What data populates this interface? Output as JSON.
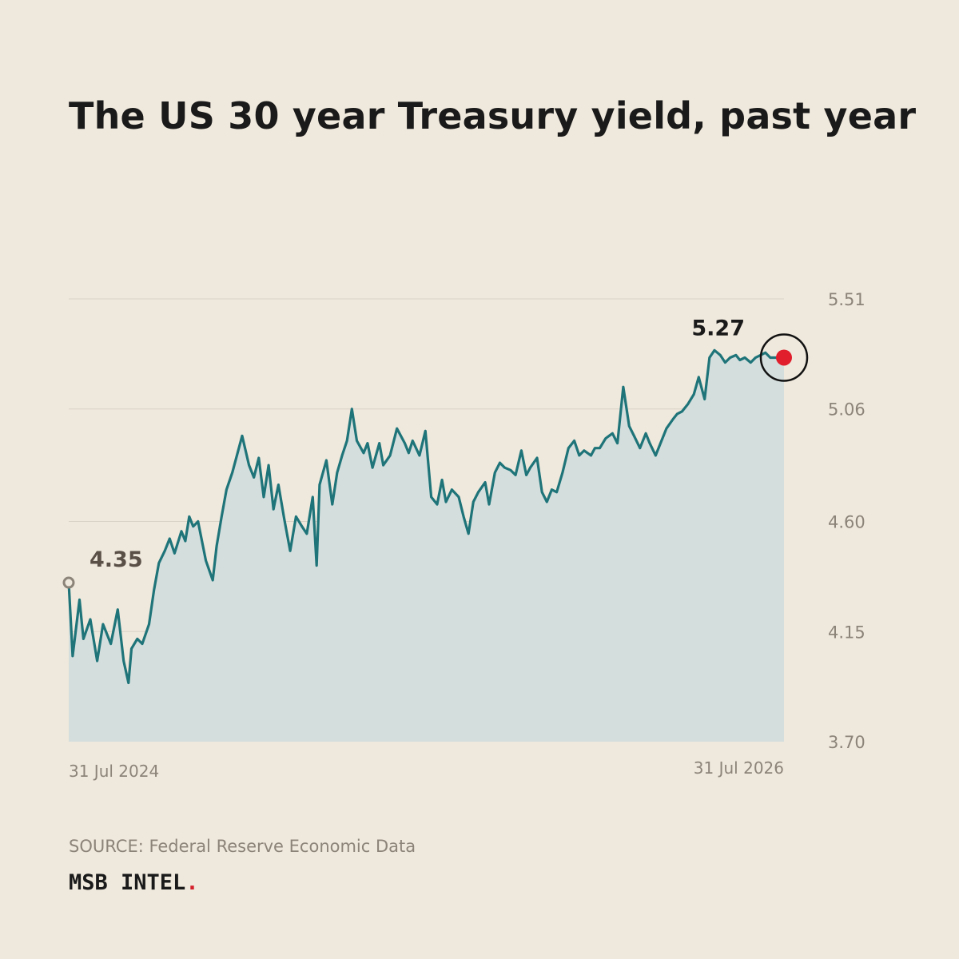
{
  "title": "The US 30 year Treasury yield, past year",
  "source": "SOURCE: Federal Reserve Economic Data",
  "brand": {
    "name": "MSB INTEL",
    "dot": "."
  },
  "colors": {
    "background": "#EFE8DC",
    "line": "#1E7479",
    "area": "#D4DEDD",
    "grid": "#D9D2C6",
    "axis_text": "#8C8479",
    "start_marker": "#8C8479",
    "end_marker": "#E01E2C",
    "highlight_ring": "#111111",
    "start_label": "#5A5048",
    "end_label": "#1A1A1A"
  },
  "chart_data": {
    "type": "area",
    "xlim": [
      "2024-07-31",
      "2026-07-31"
    ],
    "ylim": [
      3.7,
      5.51
    ],
    "y_ticks": [
      "5.51",
      "5.06",
      "4.60",
      "4.15",
      "3.70"
    ],
    "x_tick_labels": [
      "31 Jul 2024",
      "31 Jul 2026"
    ],
    "grid": true,
    "start": {
      "label": "4.35",
      "value": 4.35
    },
    "end": {
      "label": "5.27",
      "value": 5.27
    },
    "x": [
      "2024-07-31",
      "2024-08-04",
      "2024-08-11",
      "2024-08-15",
      "2024-08-22",
      "2024-08-29",
      "2024-09-04",
      "2024-09-12",
      "2024-09-19",
      "2024-09-25",
      "2024-09-30",
      "2024-10-03",
      "2024-10-09",
      "2024-10-14",
      "2024-10-21",
      "2024-10-26",
      "2024-10-31",
      "2024-11-06",
      "2024-11-11",
      "2024-11-16",
      "2024-11-23",
      "2024-11-27",
      "2024-12-01",
      "2024-12-05",
      "2024-12-10",
      "2024-12-18",
      "2024-12-25",
      "2024-12-29",
      "2025-01-03",
      "2025-01-08",
      "2025-01-14",
      "2025-01-24",
      "2025-01-31",
      "2025-02-05",
      "2025-02-10",
      "2025-02-15",
      "2025-02-20",
      "2025-02-25",
      "2025-03-02",
      "2025-03-08",
      "2025-03-14",
      "2025-03-20",
      "2025-03-26",
      "2025-03-31",
      "2025-04-06",
      "2025-04-10",
      "2025-04-13",
      "2025-04-20",
      "2025-04-26",
      "2025-05-01",
      "2025-05-06",
      "2025-05-11",
      "2025-05-16",
      "2025-05-21",
      "2025-05-28",
      "2025-06-01",
      "2025-06-06",
      "2025-06-13",
      "2025-06-17",
      "2025-06-24",
      "2025-07-01",
      "2025-07-09",
      "2025-07-13",
      "2025-07-17",
      "2025-07-24",
      "2025-07-30",
      "2025-08-05",
      "2025-08-11",
      "2025-08-16",
      "2025-08-20",
      "2025-08-26",
      "2025-09-02",
      "2025-09-07",
      "2025-09-12",
      "2025-09-17",
      "2025-09-22",
      "2025-09-29",
      "2025-10-03",
      "2025-10-09",
      "2025-10-14",
      "2025-10-19",
      "2025-10-25",
      "2025-10-30",
      "2025-11-05",
      "2025-11-10",
      "2025-11-14",
      "2025-11-21",
      "2025-11-26",
      "2025-12-01",
      "2025-12-06",
      "2025-12-11",
      "2025-12-17",
      "2025-12-23",
      "2025-12-29",
      "2026-01-03",
      "2026-01-08",
      "2026-01-15",
      "2026-01-19",
      "2026-01-24",
      "2026-01-30",
      "2026-02-06",
      "2026-02-11",
      "2026-02-17",
      "2026-02-23",
      "2026-02-28",
      "2026-03-06",
      "2026-03-12",
      "2026-03-16",
      "2026-03-22",
      "2026-03-27",
      "2026-04-02",
      "2026-04-09",
      "2026-04-13",
      "2026-04-18",
      "2026-04-24",
      "2026-04-30",
      "2026-05-05",
      "2026-05-11",
      "2026-05-16",
      "2026-05-21",
      "2026-05-27",
      "2026-06-01",
      "2026-06-06",
      "2026-06-12",
      "2026-06-16",
      "2026-06-21",
      "2026-06-27",
      "2026-07-02",
      "2026-07-07",
      "2026-07-12",
      "2026-07-17",
      "2026-07-21",
      "2026-07-26",
      "2026-07-31"
    ],
    "values": [
      4.35,
      4.05,
      4.28,
      4.12,
      4.2,
      4.03,
      4.18,
      4.1,
      4.24,
      4.03,
      3.94,
      4.08,
      4.12,
      4.1,
      4.18,
      4.32,
      4.43,
      4.48,
      4.53,
      4.47,
      4.56,
      4.52,
      4.62,
      4.58,
      4.6,
      4.44,
      4.36,
      4.5,
      4.62,
      4.73,
      4.8,
      4.95,
      4.83,
      4.78,
      4.86,
      4.7,
      4.83,
      4.65,
      4.75,
      4.61,
      4.48,
      4.62,
      4.58,
      4.55,
      4.7,
      4.42,
      4.75,
      4.85,
      4.67,
      4.8,
      4.87,
      4.93,
      5.06,
      4.93,
      4.88,
      4.92,
      4.82,
      4.92,
      4.83,
      4.87,
      4.98,
      4.92,
      4.88,
      4.93,
      4.87,
      4.97,
      4.7,
      4.67,
      4.77,
      4.68,
      4.73,
      4.7,
      4.62,
      4.55,
      4.68,
      4.72,
      4.76,
      4.67,
      4.8,
      4.84,
      4.82,
      4.81,
      4.79,
      4.89,
      4.79,
      4.82,
      4.86,
      4.72,
      4.68,
      4.73,
      4.72,
      4.8,
      4.9,
      4.93,
      4.87,
      4.89,
      4.87,
      4.9,
      4.9,
      4.94,
      4.96,
      4.92,
      5.15,
      4.99,
      4.95,
      4.9,
      4.96,
      4.92,
      4.87,
      4.92,
      4.98,
      5.02,
      5.04,
      5.05,
      5.08,
      5.12,
      5.19,
      5.1,
      5.27,
      5.3,
      5.28,
      5.25,
      5.27,
      5.28,
      5.26,
      5.27,
      5.25,
      5.27,
      5.28,
      5.29,
      5.27,
      5.27,
      5.27,
      5.27
    ]
  }
}
